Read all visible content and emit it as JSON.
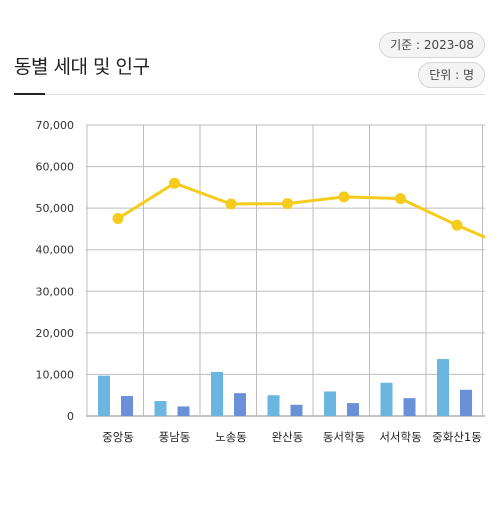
{
  "header": {
    "title": "동별 세대 및 인구",
    "date_badge": "기준 : 2023-08",
    "unit_badge": "단위 : 명"
  },
  "chart_data": {
    "type": "bar",
    "categories": [
      "중앙동",
      "풍남동",
      "노송동",
      "완산동",
      "동서학동",
      "서서학동",
      "중화산1동"
    ],
    "ylim": [
      0,
      70000
    ],
    "yticks": [
      0,
      10000,
      20000,
      30000,
      40000,
      50000,
      60000,
      70000
    ],
    "ytick_labels": [
      "0",
      "10,000",
      "20,000",
      "30,000",
      "40,000",
      "50,000",
      "60,000",
      "70,000"
    ],
    "grid": true,
    "series": [
      {
        "kind": "bar",
        "color": "#6bb6e0",
        "values": [
          9700,
          3600,
          10600,
          5000,
          5900,
          8000,
          13700
        ]
      },
      {
        "kind": "bar",
        "color": "#6a90d8",
        "values": [
          4800,
          2300,
          5500,
          2700,
          3100,
          4300,
          6300
        ]
      },
      {
        "kind": "line",
        "color": "#f5cc1b",
        "values": [
          47500,
          56000,
          51000,
          51100,
          52700,
          52300,
          45900
        ],
        "continues_to": 43000
      }
    ]
  }
}
